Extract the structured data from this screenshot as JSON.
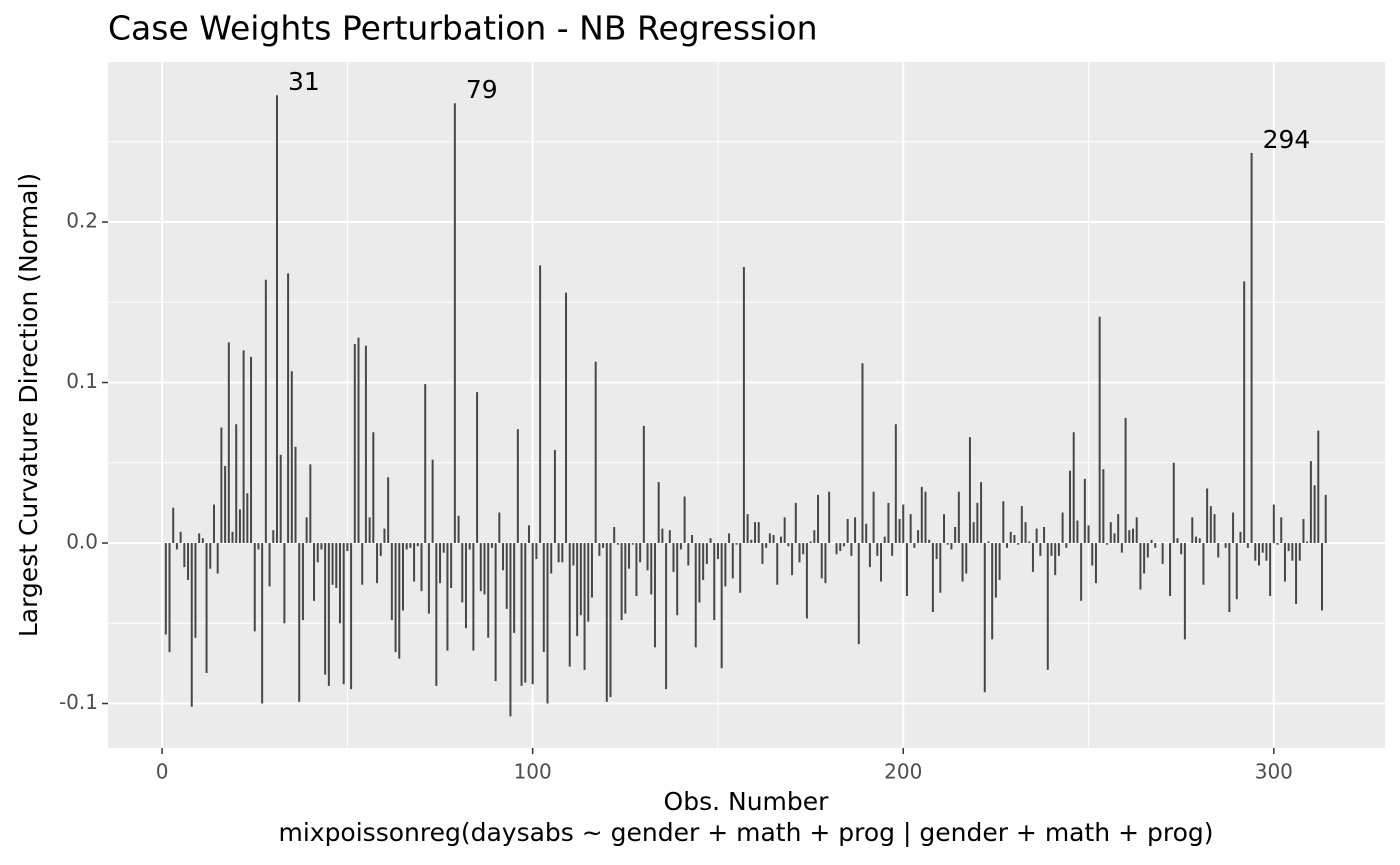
{
  "chart_data": {
    "type": "needle",
    "title": "Case Weights Perturbation - NB Regression",
    "xlabel": "Obs. Number",
    "caption": "mixpoissonreg(daysabs ~ gender + math + prog | gender + math + prog)",
    "ylabel": "Largest Curvature Direction (Normal)",
    "color": "#474747",
    "grid": true,
    "xlim": [
      -14.6,
      330
    ],
    "ylim": [
      -0.1277,
      0.2997
    ],
    "xticks": [
      0,
      100,
      200,
      300
    ],
    "yticks": [
      -0.1,
      {
        "value": 0,
        "label": "0.0"
      },
      0.1,
      0.2
    ],
    "x_minor_grid": [
      50,
      150,
      250
    ],
    "y_minor_grid": [
      -0.05,
      0.05,
      0.15,
      0.25
    ],
    "annotations": [
      {
        "text": "31",
        "x": 31
      },
      {
        "text": "79",
        "x": 79
      },
      {
        "text": "294",
        "x": 294
      }
    ],
    "x": [
      1,
      2,
      3,
      4,
      5,
      6,
      7,
      8,
      9,
      10,
      11,
      12,
      13,
      14,
      15,
      16,
      17,
      18,
      19,
      20,
      21,
      22,
      23,
      24,
      25,
      26,
      27,
      28,
      29,
      30,
      31,
      32,
      33,
      34,
      35,
      36,
      37,
      38,
      39,
      40,
      41,
      42,
      43,
      44,
      45,
      46,
      47,
      48,
      49,
      50,
      51,
      52,
      53,
      54,
      55,
      56,
      57,
      58,
      59,
      60,
      61,
      62,
      63,
      64,
      65,
      66,
      67,
      68,
      69,
      70,
      71,
      72,
      73,
      74,
      75,
      76,
      77,
      78,
      79,
      80,
      81,
      82,
      83,
      84,
      85,
      86,
      87,
      88,
      89,
      90,
      91,
      92,
      93,
      94,
      95,
      96,
      97,
      98,
      99,
      100,
      101,
      102,
      103,
      104,
      105,
      106,
      107,
      108,
      109,
      110,
      111,
      112,
      113,
      114,
      115,
      116,
      117,
      118,
      119,
      120,
      121,
      122,
      123,
      124,
      125,
      126,
      127,
      128,
      129,
      130,
      131,
      132,
      133,
      134,
      135,
      136,
      137,
      138,
      139,
      140,
      141,
      142,
      143,
      144,
      145,
      146,
      147,
      148,
      149,
      150,
      151,
      152,
      153,
      154,
      155,
      156,
      157,
      158,
      159,
      160,
      161,
      162,
      163,
      164,
      165,
      166,
      167,
      168,
      169,
      170,
      171,
      172,
      173,
      174,
      175,
      176,
      177,
      178,
      179,
      180,
      181,
      182,
      183,
      184,
      185,
      186,
      187,
      188,
      189,
      190,
      191,
      192,
      193,
      194,
      195,
      196,
      197,
      198,
      199,
      200,
      201,
      202,
      203,
      204,
      205,
      206,
      207,
      208,
      209,
      210,
      211,
      212,
      213,
      214,
      215,
      216,
      217,
      218,
      219,
      220,
      221,
      222,
      223,
      224,
      225,
      226,
      227,
      228,
      229,
      230,
      231,
      232,
      233,
      234,
      235,
      236,
      237,
      238,
      239,
      240,
      241,
      242,
      243,
      244,
      245,
      246,
      247,
      248,
      249,
      250,
      251,
      252,
      253,
      254,
      255,
      256,
      257,
      258,
      259,
      260,
      261,
      262,
      263,
      264,
      265,
      266,
      267,
      268,
      269,
      270,
      271,
      272,
      273,
      274,
      275,
      276,
      277,
      278,
      279,
      280,
      281,
      282,
      283,
      284,
      285,
      286,
      287,
      288,
      289,
      290,
      291,
      292,
      293,
      294,
      295,
      296,
      297,
      298,
      299,
      300,
      301,
      302,
      303,
      304,
      305,
      306,
      307,
      308,
      309,
      310,
      311,
      312,
      313,
      314
    ],
    "values": [
      -0.057,
      -0.068,
      0.022,
      -0.004,
      0.007,
      -0.015,
      -0.023,
      -0.102,
      -0.059,
      0.006,
      0.003,
      -0.081,
      -0.016,
      0.024,
      -0.019,
      0.072,
      0.048,
      0.125,
      0.007,
      0.074,
      0.021,
      0.12,
      0.031,
      0.116,
      -0.055,
      -0.004,
      -0.1,
      0.164,
      -0.027,
      0.008,
      0.279,
      0.055,
      -0.05,
      0.168,
      0.107,
      0.06,
      -0.099,
      -0.048,
      0.016,
      0.049,
      -0.036,
      -0.012,
      -0.004,
      -0.082,
      -0.089,
      -0.026,
      -0.028,
      -0.05,
      -0.088,
      -0.005,
      -0.091,
      0.124,
      0.128,
      -0.026,
      0.123,
      0.016,
      0.069,
      -0.025,
      -0.008,
      0.009,
      0.041,
      -0.048,
      -0.068,
      -0.072,
      -0.042,
      -0.004,
      -0.003,
      -0.024,
      -0.002,
      -0.03,
      0.099,
      -0.044,
      0.052,
      -0.089,
      -0.025,
      -0.006,
      -0.067,
      -0.028,
      0.274,
      0.017,
      -0.037,
      -0.053,
      -0.004,
      -0.067,
      0.094,
      -0.03,
      -0.032,
      -0.059,
      -0.003,
      -0.086,
      0.019,
      -0.017,
      -0.041,
      -0.108,
      -0.056,
      0.071,
      -0.089,
      -0.087,
      0.011,
      -0.088,
      -0.01,
      0.173,
      -0.068,
      -0.1,
      -0.019,
      0.058,
      -0.012,
      -0.012,
      0.156,
      -0.077,
      -0.014,
      -0.058,
      -0.045,
      -0.079,
      -0.049,
      -0.034,
      0.113,
      -0.008,
      -0.003,
      -0.099,
      -0.096,
      0.01,
      -0.001,
      -0.048,
      -0.044,
      -0.016,
      -0.001,
      -0.033,
      -0.012,
      0.073,
      -0.017,
      -0.032,
      -0.065,
      0.038,
      0.009,
      -0.091,
      0.008,
      -0.018,
      -0.045,
      -0.004,
      0.029,
      -0.014,
      0.005,
      -0.065,
      -0.037,
      -0.023,
      -0.013,
      0.003,
      -0.048,
      -0.01,
      -0.078,
      -0.027,
      0.006,
      -0.022,
      -0.001,
      -0.031,
      0.172,
      0.018,
      0.002,
      0.013,
      0.013,
      -0.013,
      -0.003,
      0.006,
      0.005,
      -0.026,
      0.004,
      0.016,
      -0.002,
      -0.02,
      0.025,
      -0.012,
      -0.007,
      -0.047,
      0.001,
      0.008,
      0.03,
      -0.022,
      -0.025,
      0.032,
      0,
      -0.007,
      -0.005,
      -0.002,
      0.015,
      -0.008,
      0.016,
      -0.063,
      0.112,
      0.012,
      -0.015,
      0.032,
      -0.008,
      -0.024,
      0.004,
      0.025,
      -0.008,
      0.074,
      0.015,
      0.024,
      -0.033,
      0.018,
      -0.003,
      0.008,
      0.035,
      0.032,
      0.002,
      -0.043,
      -0.01,
      -0.031,
      0.018,
      -0.001,
      -0.004,
      0.01,
      0.032,
      -0.024,
      -0.019,
      0.066,
      0.013,
      0.025,
      0.038,
      -0.093,
      0.001,
      -0.06,
      -0.034,
      -0.023,
      0.026,
      -0.003,
      0.007,
      0.005,
      -0.001,
      0.023,
      0.013,
      0.001,
      -0.018,
      0.009,
      -0.008,
      0.01,
      -0.079,
      -0.008,
      -0.02,
      -0.008,
      0.019,
      -0.003,
      0.045,
      0.069,
      0.014,
      -0.036,
      0.04,
      0.011,
      -0.014,
      -0.025,
      0.141,
      0.046,
      -0.001,
      0.013,
      0.006,
      0.018,
      -0.006,
      0.078,
      0.008,
      0.009,
      0.016,
      -0.029,
      -0.019,
      -0.009,
      0.002,
      -0.003,
      0,
      -0.013,
      0,
      -0.033,
      0.05,
      0.003,
      -0.007,
      -0.06,
      0,
      0.016,
      0.004,
      0.003,
      -0.026,
      0.034,
      0.023,
      0.018,
      -0.009,
      0,
      -0.003,
      -0.043,
      0.019,
      -0.035,
      0.007,
      0.163,
      -0.003,
      0.243,
      -0.011,
      -0.014,
      -0.006,
      -0.011,
      -0.033,
      0.024,
      -0.001,
      0.016,
      -0.024,
      -0.005,
      -0.011,
      -0.038,
      -0.011,
      0.015,
      0.001,
      0.051,
      0.036,
      0.07,
      -0.042,
      0.03
    ]
  }
}
